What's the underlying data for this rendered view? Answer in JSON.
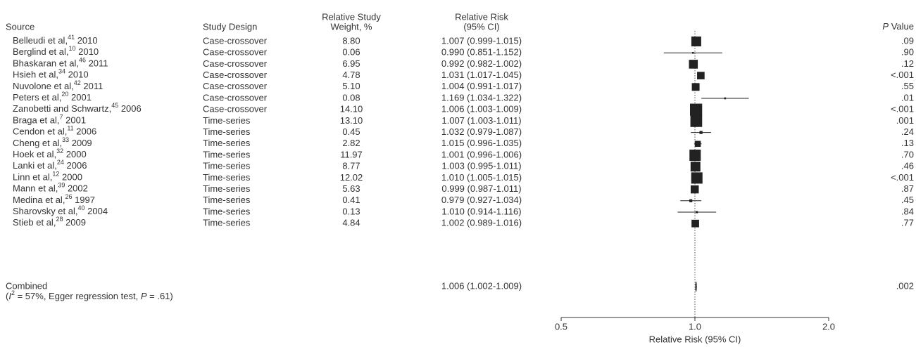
{
  "chart_data": {
    "type": "forest",
    "headers": {
      "source": [
        "Source"
      ],
      "design": [
        "Study Design"
      ],
      "weight": [
        "Relative Study",
        "Weight, %"
      ],
      "rr": [
        "Relative Risk",
        "(95% CI)"
      ],
      "p": [
        "P",
        " Value"
      ]
    },
    "rows": [
      {
        "source": "Belleudi et al,",
        "ref": "41",
        "year": " 2010",
        "design": "Case-crossover",
        "weight": 8.8,
        "weight_label": "8.80",
        "rr": 1.007,
        "lower": 0.999,
        "upper": 1.015,
        "rr_label": "1.007 (0.999-1.015)",
        "p": ".09"
      },
      {
        "source": "Berglind et al,",
        "ref": "10",
        "year": " 2010",
        "design": "Case-crossover",
        "weight": 0.06,
        "weight_label": "0.06",
        "rr": 0.99,
        "lower": 0.851,
        "upper": 1.152,
        "rr_label": "0.990 (0.851-1.152)",
        "p": ".90"
      },
      {
        "source": "Bhaskaran et al,",
        "ref": "46",
        "year": " 2011",
        "design": "Case-crossover",
        "weight": 6.95,
        "weight_label": "6.95",
        "rr": 0.992,
        "lower": 0.982,
        "upper": 1.002,
        "rr_label": "0.992 (0.982-1.002)",
        "p": ".12"
      },
      {
        "source": "Hsieh et al,",
        "ref": "34",
        "year": " 2010",
        "design": "Case-crossover",
        "weight": 4.78,
        "weight_label": "4.78",
        "rr": 1.031,
        "lower": 1.017,
        "upper": 1.045,
        "rr_label": "1.031 (1.017-1.045)",
        "p": "<.001"
      },
      {
        "source": "Nuvolone et al,",
        "ref": "42",
        "year": " 2011",
        "design": "Case-crossover",
        "weight": 5.1,
        "weight_label": "5.10",
        "rr": 1.004,
        "lower": 0.991,
        "upper": 1.017,
        "rr_label": "1.004 (0.991-1.017)",
        "p": ".55"
      },
      {
        "source": "Peters et al,",
        "ref": "20",
        "year": " 2001",
        "design": "Case-crossover",
        "weight": 0.08,
        "weight_label": "0.08",
        "rr": 1.169,
        "lower": 1.034,
        "upper": 1.322,
        "rr_label": "1.169 (1.034-1.322)",
        "p": ".01"
      },
      {
        "source": "Zanobetti and Schwartz,",
        "ref": "45",
        "year": " 2006",
        "design": "Case-crossover",
        "weight": 14.1,
        "weight_label": "14.10",
        "rr": 1.006,
        "lower": 1.003,
        "upper": 1.009,
        "rr_label": "1.006 (1.003-1.009)",
        "p": "<.001"
      },
      {
        "source": "Braga et al,",
        "ref": "7",
        "year": " 2001",
        "design": "Time-series",
        "weight": 13.1,
        "weight_label": "13.10",
        "rr": 1.007,
        "lower": 1.003,
        "upper": 1.011,
        "rr_label": "1.007 (1.003-1.011)",
        "p": ".001"
      },
      {
        "source": "Cendon et al,",
        "ref": "11",
        "year": " 2006",
        "design": "Time-series",
        "weight": 0.45,
        "weight_label": "0.45",
        "rr": 1.032,
        "lower": 0.979,
        "upper": 1.087,
        "rr_label": "1.032 (0.979-1.087)",
        "p": ".24"
      },
      {
        "source": "Cheng et al,",
        "ref": "33",
        "year": " 2009",
        "design": "Time-series",
        "weight": 2.82,
        "weight_label": "2.82",
        "rr": 1.015,
        "lower": 0.996,
        "upper": 1.035,
        "rr_label": "1.015 (0.996-1.035)",
        "p": ".13"
      },
      {
        "source": "Hoek et al,",
        "ref": "32",
        "year": " 2000",
        "design": "Time-series",
        "weight": 11.97,
        "weight_label": "11.97",
        "rr": 1.001,
        "lower": 0.996,
        "upper": 1.006,
        "rr_label": "1.001 (0.996-1.006)",
        "p": ".70"
      },
      {
        "source": "Lanki et al,",
        "ref": "24",
        "year": " 2006",
        "design": "Time-series",
        "weight": 8.77,
        "weight_label": "8.77",
        "rr": 1.003,
        "lower": 0.995,
        "upper": 1.011,
        "rr_label": "1.003 (0.995-1.011)",
        "p": ".46"
      },
      {
        "source": "Linn et al,",
        "ref": "12",
        "year": " 2000",
        "design": "Time-series",
        "weight": 12.02,
        "weight_label": "12.02",
        "rr": 1.01,
        "lower": 1.005,
        "upper": 1.015,
        "rr_label": "1.010 (1.005-1.015)",
        "p": "<.001"
      },
      {
        "source": "Mann et al,",
        "ref": "39",
        "year": " 2002",
        "design": "Time-series",
        "weight": 5.63,
        "weight_label": "5.63",
        "rr": 0.999,
        "lower": 0.987,
        "upper": 1.011,
        "rr_label": "0.999 (0.987-1.011)",
        "p": ".87"
      },
      {
        "source": "Medina et al,",
        "ref": "26",
        "year": " 1997",
        "design": "Time-series",
        "weight": 0.41,
        "weight_label": "0.41",
        "rr": 0.979,
        "lower": 0.927,
        "upper": 1.034,
        "rr_label": "0.979 (0.927-1.034)",
        "p": ".45"
      },
      {
        "source": "Sharovsky et al,",
        "ref": "40",
        "year": " 2004",
        "design": "Time-series",
        "weight": 0.13,
        "weight_label": "0.13",
        "rr": 1.01,
        "lower": 0.914,
        "upper": 1.116,
        "rr_label": "1.010 (0.914-1.116)",
        "p": ".84"
      },
      {
        "source": "Stieb et al,",
        "ref": "28",
        "year": " 2009",
        "design": "Time-series",
        "weight": 4.84,
        "weight_label": "4.84",
        "rr": 1.002,
        "lower": 0.989,
        "upper": 1.016,
        "rr_label": "1.002 (0.989-1.016)",
        "p": ".77"
      }
    ],
    "combined": {
      "label": "Combined",
      "note_parts": [
        "(",
        "I",
        "2",
        " = 57%, Egger regression test, ",
        "P",
        " = .61)"
      ],
      "rr": 1.006,
      "lower": 1.002,
      "upper": 1.009,
      "rr_label": "1.006 (1.002-1.009)",
      "p": ".002"
    },
    "xlabel": "Relative Risk (95% CI)",
    "xscale": "log",
    "xlim": [
      0.5,
      2
    ],
    "xticks": [
      0.5,
      {
        "value": 1,
        "label": "1.0"
      },
      {
        "value": 2,
        "label": "2.0"
      }
    ],
    "reference_line": 1,
    "color": "#222222"
  }
}
